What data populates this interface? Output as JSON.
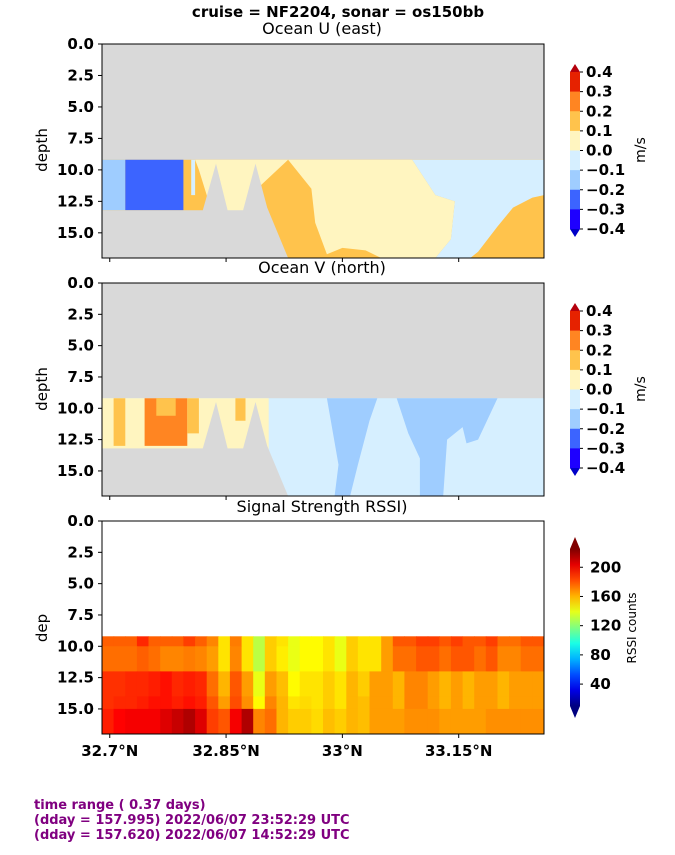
{
  "figure": {
    "suptitle": "cruise = NF2204,  sonar = os150bb",
    "footer": [
      "time range ( 0.37 days)",
      "(dday = 157.995) 2022/06/07 23:52:29 UTC",
      "(dday = 157.620) 2022/06/07 14:52:29 UTC"
    ]
  },
  "chart_data": [
    {
      "type": "heatmap",
      "title": "Ocean U (east)",
      "ylabel": "depth",
      "y_ticks": [
        "0.0",
        "2.5",
        "5.0",
        "7.5",
        "10.0",
        "12.5",
        "15.0"
      ],
      "x_ticks": [],
      "ylim": [
        17,
        0
      ],
      "xlim": [
        32.69,
        33.26
      ],
      "no_data_above_depth": 9.2,
      "colorbar": {
        "label": "m/s",
        "ticks": [
          "0.4",
          "0.3",
          "0.2",
          "0.1",
          "0.0",
          "−0.1",
          "−0.2",
          "−0.3",
          "−0.4"
        ],
        "levels": [
          -0.4,
          -0.3,
          -0.2,
          -0.1,
          0.0,
          0.1,
          0.2,
          0.3,
          0.4
        ],
        "colors": [
          "#1e00ff",
          "#3c64ff",
          "#9fcdff",
          "#d6efff",
          "#fff5c0",
          "#ffc34c",
          "#ff8522",
          "#e62200"
        ],
        "extend_colors": [
          "#0000c8",
          "#b4000c"
        ]
      },
      "regions": [
        {
          "value": 0.15,
          "poly": [
            [
              32.69,
              9.2
            ],
            [
              33.26,
              9.2
            ],
            [
              33.26,
              17
            ],
            [
              32.69,
              17
            ]
          ]
        },
        {
          "value": -0.15,
          "poly": [
            [
              32.69,
              9.2
            ],
            [
              32.72,
              9.2
            ],
            [
              32.72,
              13.2
            ],
            [
              32.69,
              13.2
            ]
          ]
        },
        {
          "value": -0.25,
          "poly": [
            [
              32.72,
              9.2
            ],
            [
              32.795,
              9.2
            ],
            [
              32.795,
              13.2
            ],
            [
              32.72,
              13.2
            ]
          ]
        },
        {
          "value": -0.05,
          "poly": [
            [
              32.805,
              9.2
            ],
            [
              32.81,
              9.2
            ],
            [
              32.81,
              12.0
            ],
            [
              32.805,
              12.0
            ]
          ]
        },
        {
          "value": 0.05,
          "poly": [
            [
              32.81,
              9.2
            ],
            [
              32.93,
              9.2
            ],
            [
              32.89,
              11.5
            ],
            [
              32.875,
              14.0
            ],
            [
              32.85,
              13.4
            ],
            [
              32.84,
              12.4
            ],
            [
              32.83,
              13.0
            ],
            [
              32.815,
              10.0
            ]
          ]
        },
        {
          "value": 0.05,
          "poly": [
            [
              32.93,
              9.2
            ],
            [
              33.09,
              9.2
            ],
            [
              33.12,
              12.0
            ],
            [
              33.145,
              12.5
            ],
            [
              33.14,
              15.5
            ],
            [
              33.12,
              17
            ],
            [
              33.05,
              17
            ],
            [
              33.03,
              16.4
            ],
            [
              33.0,
              16.2
            ],
            [
              32.98,
              16.7
            ],
            [
              32.965,
              14.2
            ],
            [
              32.96,
              11.5
            ]
          ]
        },
        {
          "value": -0.05,
          "poly": [
            [
              33.09,
              9.2
            ],
            [
              33.26,
              9.2
            ],
            [
              33.26,
              12.0
            ],
            [
              33.245,
              12.2
            ],
            [
              33.22,
              13.0
            ],
            [
              33.2,
              14.5
            ],
            [
              33.175,
              16.5
            ],
            [
              33.165,
              17
            ],
            [
              33.12,
              17
            ],
            [
              33.14,
              15.5
            ],
            [
              33.145,
              12.5
            ],
            [
              33.12,
              12.0
            ]
          ]
        }
      ],
      "mask": [
        [
          32.69,
          13.2
        ],
        [
          32.81,
          13.2
        ],
        [
          32.82,
          13.2
        ],
        [
          32.837,
          9.5
        ],
        [
          32.852,
          13.2
        ],
        [
          32.872,
          13.2
        ],
        [
          32.888,
          9.5
        ],
        [
          32.903,
          13.0
        ],
        [
          32.93,
          17
        ],
        [
          32.69,
          17
        ]
      ]
    },
    {
      "type": "heatmap",
      "title": "Ocean V (north)",
      "ylabel": "depth",
      "y_ticks": [
        "0.0",
        "2.5",
        "5.0",
        "7.5",
        "10.0",
        "12.5",
        "15.0"
      ],
      "x_ticks": [],
      "ylim": [
        17,
        0
      ],
      "xlim": [
        32.69,
        33.26
      ],
      "no_data_above_depth": 9.2,
      "colorbar": {
        "label": "m/s",
        "ticks": [
          "0.4",
          "0.3",
          "0.2",
          "0.1",
          "0.0",
          "−0.1",
          "−0.2",
          "−0.3",
          "−0.4"
        ],
        "levels": [
          -0.4,
          -0.3,
          -0.2,
          -0.1,
          0.0,
          0.1,
          0.2,
          0.3,
          0.4
        ],
        "colors": [
          "#1e00ff",
          "#3c64ff",
          "#9fcdff",
          "#d6efff",
          "#fff5c0",
          "#ffc34c",
          "#ff8522",
          "#e62200"
        ],
        "extend_colors": [
          "#0000c8",
          "#b4000c"
        ]
      },
      "regions": [
        {
          "value": -0.05,
          "poly": [
            [
              32.69,
              9.2
            ],
            [
              33.26,
              9.2
            ],
            [
              33.26,
              17
            ],
            [
              32.69,
              17
            ]
          ]
        },
        {
          "value": 0.05,
          "poly": [
            [
              32.69,
              9.2
            ],
            [
              32.905,
              9.2
            ],
            [
              32.905,
              17
            ],
            [
              32.69,
              17
            ]
          ]
        },
        {
          "value": 0.15,
          "poly": [
            [
              32.705,
              9.2
            ],
            [
              32.72,
              9.2
            ],
            [
              32.72,
              13.0
            ],
            [
              32.705,
              13.0
            ]
          ]
        },
        {
          "value": 0.25,
          "poly": [
            [
              32.745,
              9.2
            ],
            [
              32.8,
              9.2
            ],
            [
              32.8,
              13.0
            ],
            [
              32.745,
              13.0
            ]
          ]
        },
        {
          "value": 0.15,
          "poly": [
            [
              32.76,
              9.2
            ],
            [
              32.785,
              9.2
            ],
            [
              32.785,
              10.6
            ],
            [
              32.76,
              10.6
            ]
          ]
        },
        {
          "value": 0.15,
          "poly": [
            [
              32.8,
              9.2
            ],
            [
              32.815,
              9.2
            ],
            [
              32.815,
              12.0
            ],
            [
              32.8,
              12.0
            ]
          ]
        },
        {
          "value": 0.15,
          "poly": [
            [
              32.862,
              9.2
            ],
            [
              32.875,
              9.2
            ],
            [
              32.875,
              11.0
            ],
            [
              32.862,
              11.0
            ]
          ]
        },
        {
          "value": -0.15,
          "poly": [
            [
              32.98,
              9.2
            ],
            [
              33.045,
              9.2
            ],
            [
              33.035,
              11.0
            ],
            [
              33.02,
              14.5
            ],
            [
              33.01,
              17
            ],
            [
              32.99,
              17
            ],
            [
              32.995,
              14.5
            ]
          ]
        },
        {
          "value": -0.15,
          "poly": [
            [
              33.07,
              9.2
            ],
            [
              33.2,
              9.2
            ],
            [
              33.175,
              12.5
            ],
            [
              33.16,
              12.8
            ],
            [
              33.155,
              11.5
            ],
            [
              33.135,
              12.5
            ],
            [
              33.13,
              17
            ],
            [
              33.1,
              17
            ],
            [
              33.1,
              14.0
            ],
            [
              33.085,
              12.0
            ]
          ]
        }
      ],
      "mask": [
        [
          32.69,
          13.2
        ],
        [
          32.81,
          13.2
        ],
        [
          32.82,
          13.2
        ],
        [
          32.837,
          9.5
        ],
        [
          32.852,
          13.2
        ],
        [
          32.872,
          13.2
        ],
        [
          32.888,
          9.5
        ],
        [
          32.903,
          13.0
        ],
        [
          32.93,
          17
        ],
        [
          32.69,
          17
        ]
      ]
    },
    {
      "type": "heatmap",
      "title": "Signal Strength RSSI)",
      "ylabel": "dep",
      "y_ticks": [
        "0.0",
        "2.5",
        "5.0",
        "7.5",
        "10.0",
        "12.5",
        "15.0"
      ],
      "x_ticks": [
        "32.7°N",
        "32.85°N",
        "33°N",
        "33.15°N"
      ],
      "x_tick_values": [
        32.7,
        32.85,
        33.0,
        33.15
      ],
      "ylim": [
        17,
        0
      ],
      "xlim": [
        32.69,
        33.26
      ],
      "no_data_above_depth": 9.2,
      "colorbar": {
        "label": "RSSI counts",
        "ticks": [
          "200",
          "160",
          "120",
          "80",
          "40"
        ],
        "tick_values": [
          200,
          160,
          120,
          80,
          40
        ],
        "range": [
          10,
          225
        ]
      },
      "depth_bins": [
        9.2,
        10.0,
        12.0,
        14.0,
        15.0,
        17.0
      ],
      "x_bins": [
        32.69,
        32.705,
        32.72,
        32.735,
        32.75,
        32.765,
        32.78,
        32.795,
        32.81,
        32.825,
        32.84,
        32.855,
        32.87,
        32.885,
        32.9,
        32.915,
        32.93,
        32.945,
        32.96,
        32.975,
        32.99,
        33.005,
        33.02,
        33.035,
        33.05,
        33.065,
        33.08,
        33.095,
        33.11,
        33.125,
        33.14,
        33.155,
        33.17,
        33.185,
        33.2,
        33.215,
        33.23,
        33.245,
        33.26
      ],
      "rssi": [
        [
          178,
          178,
          178,
          190,
          178,
          178,
          178,
          185,
          178,
          170,
          150,
          172,
          150,
          130,
          155,
          150,
          140,
          145,
          145,
          150,
          140,
          155,
          150,
          150,
          165,
          180,
          180,
          185,
          185,
          180,
          185,
          180,
          180,
          185,
          175,
          175,
          180,
          180
        ],
        [
          175,
          175,
          175,
          178,
          175,
          170,
          170,
          172,
          170,
          165,
          150,
          170,
          150,
          130,
          155,
          148,
          140,
          145,
          145,
          150,
          140,
          155,
          150,
          150,
          165,
          175,
          175,
          180,
          180,
          175,
          180,
          180,
          175,
          180,
          170,
          170,
          175,
          175
        ],
        [
          188,
          188,
          190,
          190,
          192,
          195,
          190,
          192,
          190,
          175,
          160,
          180,
          165,
          140,
          165,
          158,
          145,
          150,
          150,
          155,
          150,
          160,
          155,
          165,
          165,
          160,
          170,
          170,
          165,
          160,
          165,
          160,
          165,
          165,
          160,
          165,
          165,
          165
        ],
        [
          188,
          190,
          190,
          192,
          195,
          195,
          192,
          195,
          192,
          180,
          165,
          182,
          168,
          145,
          170,
          160,
          150,
          152,
          150,
          155,
          150,
          160,
          158,
          165,
          165,
          160,
          170,
          170,
          165,
          160,
          165,
          160,
          165,
          165,
          160,
          165,
          165,
          165
        ],
        [
          192,
          198,
          200,
          200,
          200,
          205,
          210,
          215,
          205,
          185,
          180,
          200,
          215,
          170,
          175,
          160,
          155,
          155,
          152,
          158,
          155,
          160,
          158,
          165,
          165,
          165,
          168,
          168,
          168,
          165,
          165,
          165,
          165,
          168,
          168,
          168,
          168,
          168
        ]
      ]
    }
  ]
}
